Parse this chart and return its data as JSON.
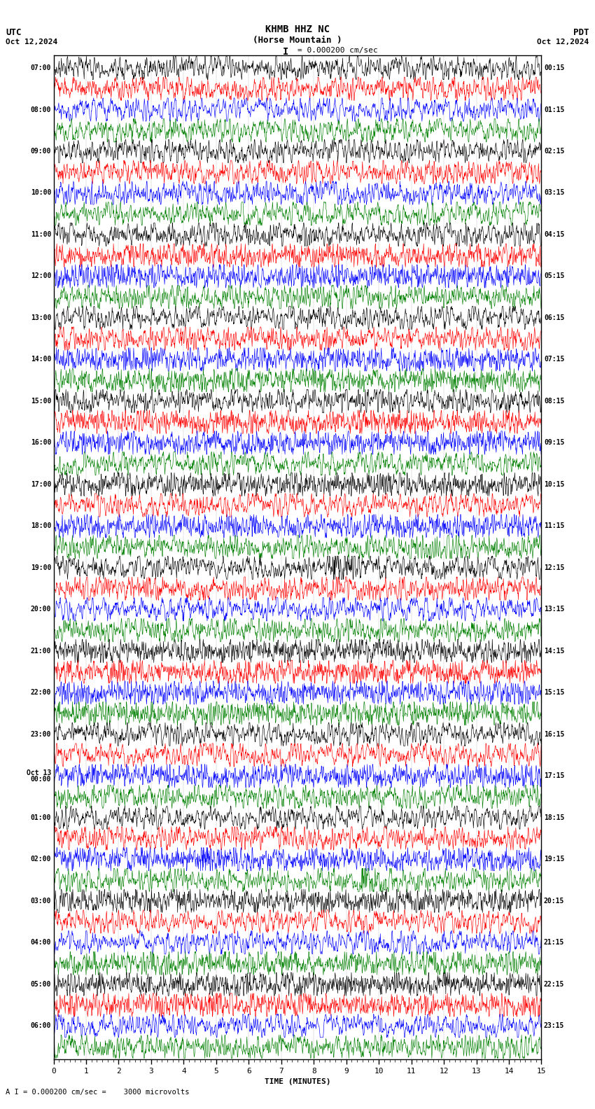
{
  "title_line1": "KHMB HHZ NC",
  "title_line2": "(Horse Mountain )",
  "scale_label": "= 0.000200 cm/sec",
  "utc_label": "UTC",
  "date_left": "Oct 12,2024",
  "date_right": "Oct 12,2024",
  "pdt_label": "PDT",
  "bottom_label": "A I = 0.000200 cm/sec =    3000 microvolts",
  "xlabel": "TIME (MINUTES)",
  "time_axis_max": 15,
  "num_rows": 48,
  "row_colors": [
    "black",
    "red",
    "blue",
    "green"
  ],
  "bg_color": "white",
  "left_labels_utc": [
    "07:00",
    "08:00",
    "09:00",
    "10:00",
    "11:00",
    "12:00",
    "13:00",
    "14:00",
    "15:00",
    "16:00",
    "17:00",
    "18:00",
    "19:00",
    "20:00",
    "21:00",
    "22:00",
    "23:00",
    "Oct 13\n00:00",
    "01:00",
    "02:00",
    "03:00",
    "04:00",
    "05:00",
    "06:00"
  ],
  "right_labels_pdt": [
    "00:15",
    "01:15",
    "02:15",
    "03:15",
    "04:15",
    "05:15",
    "06:15",
    "07:15",
    "08:15",
    "09:15",
    "10:15",
    "11:15",
    "12:15",
    "13:15",
    "14:15",
    "15:15",
    "16:15",
    "17:15",
    "18:15",
    "19:15",
    "20:15",
    "21:15",
    "22:15",
    "23:15"
  ],
  "figsize": [
    8.5,
    15.84
  ],
  "dpi": 100
}
